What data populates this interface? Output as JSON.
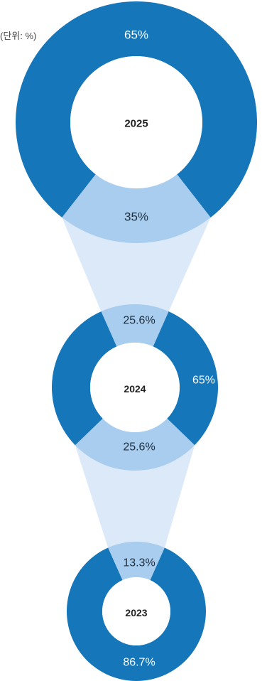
{
  "chart_data": {
    "type": "pie",
    "unit_label": "(단위: %)",
    "colors": {
      "primary": "#1576ba",
      "secondary": "#a9cdee",
      "connector": "#dbe9f8"
    },
    "donuts": [
      {
        "year": "2025",
        "slices": [
          {
            "value": 65,
            "label": "65%"
          },
          {
            "value": 35,
            "label": "35%"
          }
        ]
      },
      {
        "year": "2024",
        "slices": [
          {
            "value": 25.6,
            "label": "25.6%"
          },
          {
            "value": 65,
            "label": "65%"
          },
          {
            "value": 25.6,
            "label": "25.6%"
          }
        ]
      },
      {
        "year": "2023",
        "slices": [
          {
            "value": 13.3,
            "label": "13.3%"
          },
          {
            "value": 86.7,
            "label": "86.7%"
          }
        ]
      }
    ]
  }
}
